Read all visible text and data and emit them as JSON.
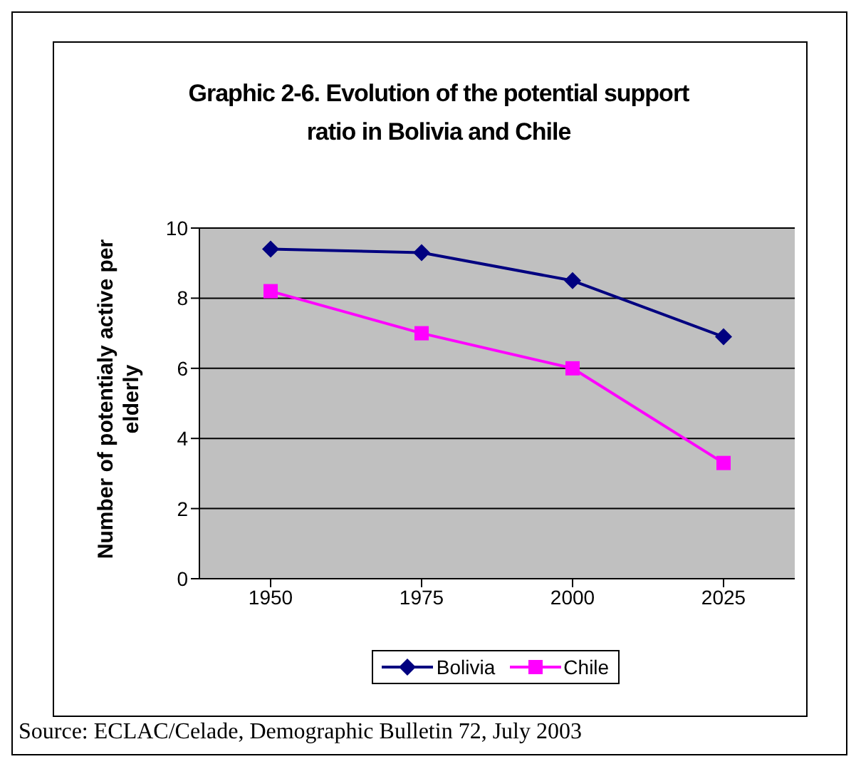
{
  "chart_data": {
    "type": "line",
    "title": "Graphic 2-6. Evolution of the potential support ratio in Bolivia and Chile",
    "ylabel": "Number of potentialy active per elderly",
    "categories": [
      "1950",
      "1975",
      "2000",
      "2025"
    ],
    "series": [
      {
        "name": "Bolivia",
        "color": "#000080",
        "values": [
          9.4,
          9.3,
          8.5,
          6.9
        ],
        "marker": "diamond"
      },
      {
        "name": "Chile",
        "color": "#ff00ff",
        "values": [
          8.2,
          7.0,
          6.0,
          3.3
        ],
        "marker": "square"
      }
    ],
    "ylim": [
      0,
      10
    ],
    "yticks": [
      0,
      2,
      4,
      6,
      8,
      10
    ],
    "grid": "y",
    "legend": "bottom",
    "line_style": "solid",
    "annotations": [
      "Source: ECLAC/Celade, Demographic Bulletin 72, July 2003"
    ]
  }
}
